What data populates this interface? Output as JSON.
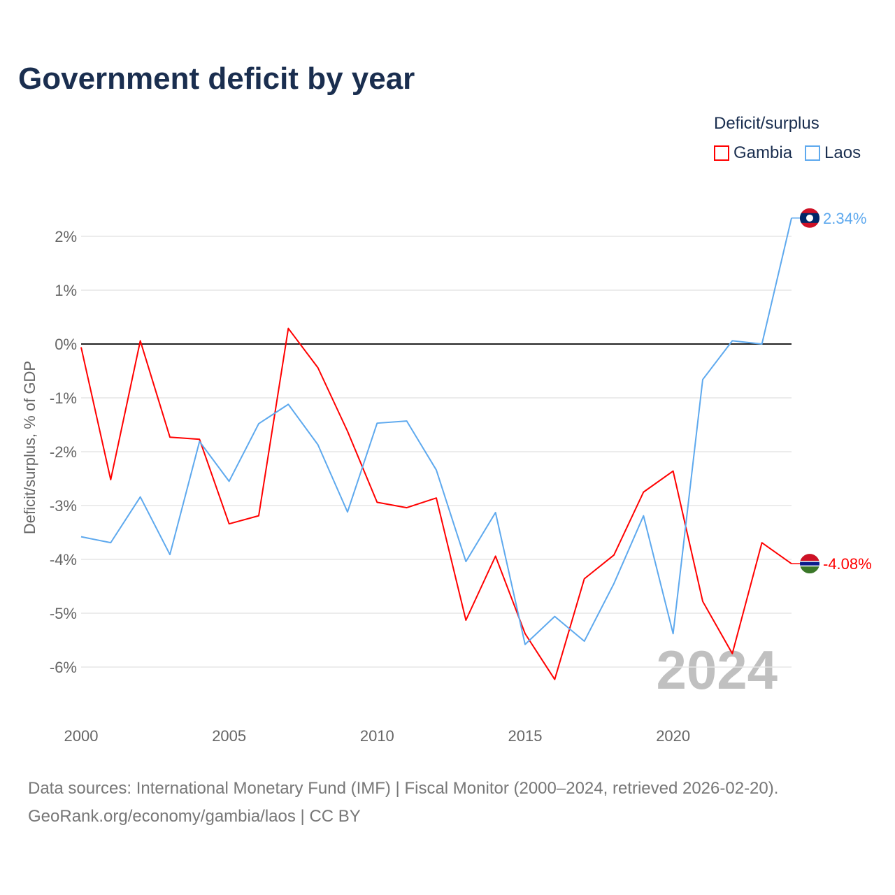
{
  "title": "Government deficit by year",
  "legend": {
    "title": "Deficit/surplus",
    "items": [
      {
        "label": "Gambia",
        "color": "#ff0000"
      },
      {
        "label": "Laos",
        "color": "#5ea9ee"
      }
    ]
  },
  "chart_data": {
    "type": "line",
    "title": "Government deficit by year",
    "xlabel": "",
    "ylabel": "Deficit/surplus, % of GDP",
    "x": [
      2000,
      2001,
      2002,
      2003,
      2004,
      2005,
      2006,
      2007,
      2008,
      2009,
      2010,
      2011,
      2012,
      2013,
      2014,
      2015,
      2016,
      2017,
      2018,
      2019,
      2020,
      2021,
      2022,
      2023,
      2024
    ],
    "xticks": [
      "2000",
      "2005",
      "2010",
      "2015",
      "2020"
    ],
    "yticks": [
      "2%",
      "1%",
      "0%",
      "-1%",
      "-2%",
      "-3%",
      "-4%",
      "-5%",
      "-6%"
    ],
    "ytick_values": [
      2,
      1,
      0,
      -1,
      -2,
      -3,
      -4,
      -5,
      -6
    ],
    "xlim": [
      2000,
      2024
    ],
    "ylim": [
      -6.8,
      2.6
    ],
    "grid": true,
    "legend_position": "top-right",
    "watermark_year": "2024",
    "series": [
      {
        "name": "Gambia",
        "color": "#ff0000",
        "end_label": "-4.08%",
        "values": [
          -0.06,
          -2.52,
          0.06,
          -1.73,
          -1.77,
          -3.34,
          -3.19,
          0.29,
          -0.44,
          -1.62,
          -2.94,
          -3.04,
          -2.86,
          -5.13,
          -3.94,
          -5.38,
          -6.23,
          -4.36,
          -3.92,
          -2.75,
          -2.36,
          -4.78,
          -5.75,
          -3.69,
          -4.08
        ]
      },
      {
        "name": "Laos",
        "color": "#5ea9ee",
        "end_label": "2.34%",
        "values": [
          -3.58,
          -3.69,
          -2.84,
          -3.91,
          -1.81,
          -2.55,
          -1.48,
          -1.12,
          -1.87,
          -3.12,
          -1.47,
          -1.43,
          -2.34,
          -4.04,
          -3.13,
          -5.58,
          -5.06,
          -5.52,
          -4.45,
          -3.19,
          -5.38,
          -0.66,
          0.06,
          0.0,
          2.34
        ]
      }
    ]
  },
  "source": {
    "line1": "Data sources: International Monetary Fund (IMF) | Fiscal Monitor (2000–2024, retrieved 2026-02-20).",
    "line2": "GeoRank.org/economy/gambia/laos | CC BY"
  }
}
